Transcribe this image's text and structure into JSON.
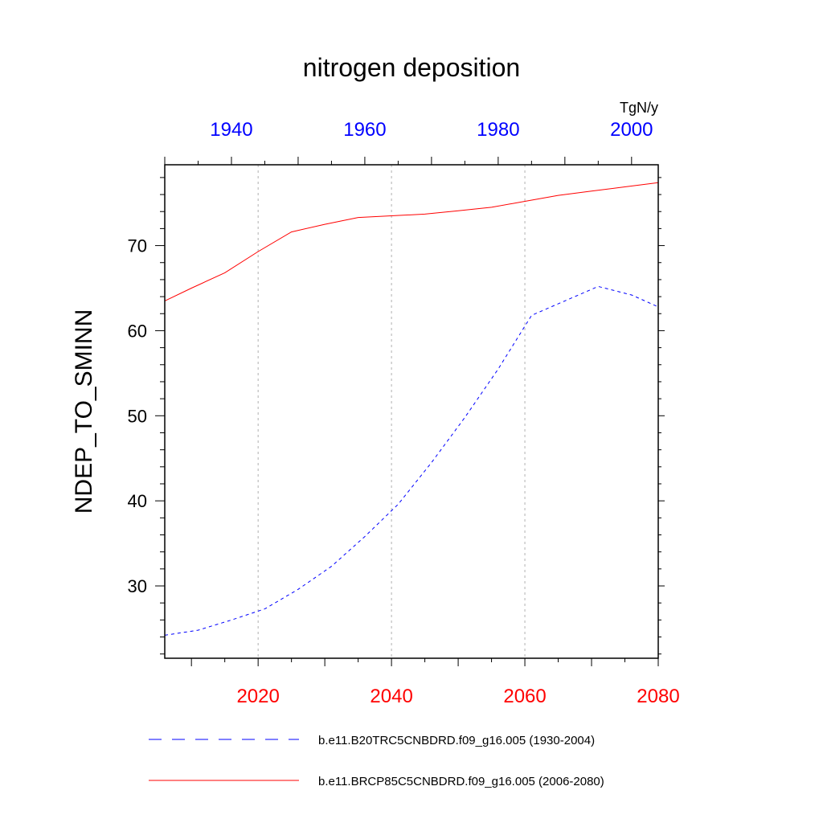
{
  "chart_data": {
    "type": "line",
    "title": "nitrogen deposition",
    "units": "TgN/y",
    "ylabel": "NDEP_TO_SMINN",
    "ylim": [
      21.5,
      79.5
    ],
    "yticks": [
      30,
      40,
      50,
      60,
      70
    ],
    "grid": "vertical-dashed",
    "legend_position": "bottom",
    "top_axis": {
      "color": "#0000ff",
      "xlim": [
        1930,
        2004
      ],
      "ticks": [
        1940,
        1960,
        1980,
        2000
      ],
      "labels": [
        "1940",
        "1960",
        "1980",
        "2000"
      ]
    },
    "bottom_axis": {
      "color": "#ff0000",
      "xlim": [
        2006,
        2080
      ],
      "ticks": [
        2020,
        2040,
        2060,
        2080
      ],
      "labels": [
        "2020",
        "2040",
        "2060",
        "2080"
      ]
    },
    "series": [
      {
        "name": "b.e11.B20TRC5CNBDRD.f09_g16.005 (1930-2004)",
        "axis": "top",
        "color": "#0000ff",
        "dash": "dashed",
        "x": [
          1930,
          1935,
          1940,
          1945,
          1950,
          1955,
          1960,
          1965,
          1970,
          1975,
          1980,
          1985,
          1990,
          1995,
          2000,
          2004
        ],
        "y": [
          24.2,
          24.8,
          26.0,
          27.3,
          29.6,
          32.3,
          35.8,
          39.6,
          44.5,
          49.8,
          55.5,
          61.8,
          63.5,
          65.2,
          64.2,
          62.8
        ]
      },
      {
        "name": "b.e11.BRCP85C5CNBDRD.f09_g16.005 (2006-2080)",
        "axis": "bottom",
        "color": "#ff0000",
        "dash": "solid",
        "x": [
          2006,
          2010,
          2015,
          2020,
          2025,
          2030,
          2035,
          2040,
          2045,
          2050,
          2055,
          2060,
          2065,
          2070,
          2075,
          2080
        ],
        "y": [
          63.5,
          65.0,
          66.8,
          69.3,
          71.6,
          72.5,
          73.3,
          73.5,
          73.7,
          74.1,
          74.5,
          75.2,
          75.9,
          76.4,
          76.9,
          77.4
        ]
      }
    ]
  }
}
